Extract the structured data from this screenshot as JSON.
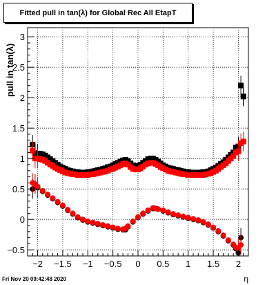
{
  "chart_data": {
    "type": "scatter",
    "title": "Fitted pull in tan(λ) for Global Rec All EtapT",
    "xlabel": "η",
    "ylabel": "pull in tan(λ)",
    "xlim": [
      -2.2,
      2.2
    ],
    "ylim": [
      -0.6,
      3.15
    ],
    "x_ticks": [
      -2,
      -1.5,
      -1,
      -0.5,
      0,
      0.5,
      1,
      1.5,
      2
    ],
    "x_tick_labels": [
      "−2",
      "−1.5",
      "−1",
      "−0.5",
      "0",
      "0.5",
      "1",
      "1.5",
      "2"
    ],
    "y_ticks": [
      -0.5,
      0,
      0.5,
      1,
      1.5,
      2,
      2.5,
      3
    ],
    "y_tick_labels": [
      "−0.5",
      "0",
      "0.5",
      "1",
      "1.5",
      "2",
      "2.5",
      "3"
    ],
    "grid": true,
    "series": [
      {
        "color": "#000000",
        "kind": "sigma",
        "x": [
          -2.1,
          -2.05,
          -2.0,
          -1.95,
          -1.9,
          -1.85,
          -1.8,
          -1.75,
          -1.7,
          -1.65,
          -1.6,
          -1.55,
          -1.5,
          -1.45,
          -1.4,
          -1.35,
          -1.3,
          -1.25,
          -1.2,
          -1.15,
          -1.1,
          -1.05,
          -1.0,
          -0.95,
          -0.9,
          -0.85,
          -0.8,
          -0.75,
          -0.7,
          -0.65,
          -0.6,
          -0.55,
          -0.5,
          -0.45,
          -0.4,
          -0.35,
          -0.3,
          -0.25,
          -0.2,
          -0.15,
          -0.1,
          -0.05,
          0.0,
          0.05,
          0.1,
          0.15,
          0.2,
          0.25,
          0.3,
          0.35,
          0.4,
          0.45,
          0.5,
          0.55,
          0.6,
          0.65,
          0.7,
          0.75,
          0.8,
          0.85,
          0.9,
          0.95,
          1.0,
          1.05,
          1.1,
          1.15,
          1.2,
          1.25,
          1.3,
          1.35,
          1.4,
          1.45,
          1.5,
          1.55,
          1.6,
          1.65,
          1.7,
          1.75,
          1.8,
          1.85,
          1.9,
          1.95,
          2.0,
          2.05,
          2.1
        ],
        "y": [
          1.23,
          1.09,
          1.08,
          1.08,
          1.07,
          1.05,
          1.02,
          0.99,
          0.96,
          0.93,
          0.9,
          0.87,
          0.85,
          0.83,
          0.81,
          0.8,
          0.79,
          0.78,
          0.78,
          0.77,
          0.77,
          0.77,
          0.78,
          0.78,
          0.79,
          0.8,
          0.81,
          0.82,
          0.83,
          0.84,
          0.86,
          0.87,
          0.89,
          0.91,
          0.93,
          0.95,
          0.97,
          0.98,
          0.96,
          0.92,
          0.89,
          0.88,
          0.87,
          0.9,
          0.93,
          0.96,
          0.99,
          1.0,
          1.0,
          0.98,
          0.95,
          0.92,
          0.89,
          0.87,
          0.85,
          0.84,
          0.83,
          0.82,
          0.81,
          0.8,
          0.79,
          0.78,
          0.78,
          0.77,
          0.77,
          0.77,
          0.77,
          0.77,
          0.78,
          0.78,
          0.79,
          0.81,
          0.83,
          0.85,
          0.88,
          0.91,
          0.94,
          0.98,
          1.02,
          1.06,
          1.1,
          1.18,
          1.2,
          2.2,
          2.02
        ]
      },
      {
        "color": "#ff0000",
        "kind": "sigma",
        "x": [
          -2.1,
          -2.05,
          -2.0,
          -1.95,
          -1.9,
          -1.85,
          -1.8,
          -1.75,
          -1.7,
          -1.65,
          -1.6,
          -1.55,
          -1.5,
          -1.45,
          -1.4,
          -1.35,
          -1.3,
          -1.25,
          -1.2,
          -1.15,
          -1.1,
          -1.05,
          -1.0,
          -0.95,
          -0.9,
          -0.85,
          -0.8,
          -0.75,
          -0.7,
          -0.65,
          -0.6,
          -0.55,
          -0.5,
          -0.45,
          -0.4,
          -0.35,
          -0.3,
          -0.25,
          -0.2,
          -0.15,
          -0.1,
          -0.05,
          0.0,
          0.05,
          0.1,
          0.15,
          0.2,
          0.25,
          0.3,
          0.35,
          0.4,
          0.45,
          0.5,
          0.55,
          0.6,
          0.65,
          0.7,
          0.75,
          0.8,
          0.85,
          0.9,
          0.95,
          1.0,
          1.05,
          1.1,
          1.15,
          1.2,
          1.25,
          1.3,
          1.35,
          1.4,
          1.45,
          1.5,
          1.55,
          1.6,
          1.65,
          1.7,
          1.75,
          1.8,
          1.85,
          1.9,
          1.95,
          2.0,
          2.05,
          2.1
        ],
        "y": [
          1.13,
          1.0,
          1.0,
          0.99,
          0.98,
          0.96,
          0.93,
          0.9,
          0.88,
          0.85,
          0.83,
          0.81,
          0.79,
          0.77,
          0.76,
          0.75,
          0.74,
          0.74,
          0.73,
          0.73,
          0.73,
          0.73,
          0.73,
          0.74,
          0.74,
          0.75,
          0.76,
          0.77,
          0.78,
          0.79,
          0.8,
          0.82,
          0.83,
          0.85,
          0.87,
          0.89,
          0.91,
          0.92,
          0.9,
          0.86,
          0.83,
          0.82,
          0.82,
          0.84,
          0.87,
          0.9,
          0.92,
          0.93,
          0.93,
          0.91,
          0.89,
          0.86,
          0.84,
          0.82,
          0.8,
          0.79,
          0.78,
          0.77,
          0.76,
          0.75,
          0.74,
          0.74,
          0.73,
          0.73,
          0.73,
          0.73,
          0.73,
          0.73,
          0.73,
          0.74,
          0.75,
          0.76,
          0.78,
          0.8,
          0.83,
          0.86,
          0.89,
          0.92,
          0.96,
          1.0,
          1.04,
          1.1,
          1.12,
          1.25,
          1.28
        ]
      },
      {
        "color": "#000000",
        "kind": "mean",
        "x": [
          -2.1,
          -2.05,
          -2.0,
          -1.9,
          -1.8,
          -1.7,
          -1.6,
          -1.5,
          -1.4,
          -1.3,
          -1.2,
          -1.1,
          -1.0,
          -0.9,
          -0.8,
          -0.7,
          -0.6,
          -0.5,
          -0.4,
          -0.3,
          -0.25,
          -0.2,
          -0.1,
          0.0,
          0.1,
          0.2,
          0.3,
          0.35,
          0.4,
          0.5,
          0.6,
          0.7,
          0.8,
          0.9,
          1.0,
          1.1,
          1.2,
          1.3,
          1.4,
          1.5,
          1.6,
          1.7,
          1.8,
          1.9,
          1.95,
          2.0,
          2.05,
          2.1
        ],
        "y": [
          0.5,
          0.58,
          0.52,
          0.46,
          0.4,
          0.34,
          0.28,
          0.22,
          0.15,
          0.09,
          0.03,
          -0.01,
          -0.04,
          -0.06,
          -0.08,
          -0.1,
          -0.12,
          -0.14,
          -0.16,
          -0.17,
          -0.17,
          -0.12,
          -0.04,
          0.03,
          0.09,
          0.14,
          0.18,
          0.18,
          0.17,
          0.14,
          0.11,
          0.08,
          0.06,
          0.04,
          0.02,
          0.0,
          -0.02,
          -0.05,
          -0.09,
          -0.14,
          -0.2,
          -0.27,
          -0.35,
          -0.42,
          -0.48,
          -0.55,
          -0.3,
          2.02
        ]
      },
      {
        "color": "#ff0000",
        "kind": "mean",
        "x": [
          -2.1,
          -2.05,
          -2.0,
          -1.9,
          -1.8,
          -1.7,
          -1.6,
          -1.5,
          -1.4,
          -1.3,
          -1.2,
          -1.1,
          -1.0,
          -0.9,
          -0.8,
          -0.7,
          -0.6,
          -0.5,
          -0.4,
          -0.3,
          -0.25,
          -0.2,
          -0.1,
          0.0,
          0.1,
          0.2,
          0.3,
          0.35,
          0.4,
          0.5,
          0.6,
          0.7,
          0.8,
          0.9,
          1.0,
          1.1,
          1.2,
          1.3,
          1.4,
          1.5,
          1.6,
          1.7,
          1.8,
          1.9,
          1.95,
          2.0,
          2.05
        ],
        "y": [
          0.6,
          0.58,
          0.54,
          0.47,
          0.41,
          0.35,
          0.29,
          0.23,
          0.16,
          0.1,
          0.04,
          0.0,
          -0.03,
          -0.05,
          -0.07,
          -0.09,
          -0.11,
          -0.13,
          -0.15,
          -0.16,
          -0.15,
          -0.11,
          -0.03,
          0.04,
          0.1,
          0.15,
          0.19,
          0.18,
          0.17,
          0.15,
          0.12,
          0.09,
          0.07,
          0.05,
          0.03,
          0.01,
          -0.01,
          -0.04,
          -0.08,
          -0.13,
          -0.19,
          -0.26,
          -0.34,
          -0.41,
          -0.46,
          -0.48,
          -0.42
        ]
      }
    ]
  },
  "footer": {
    "datestamp": "Fri Nov 20 09:42:48 2020"
  }
}
